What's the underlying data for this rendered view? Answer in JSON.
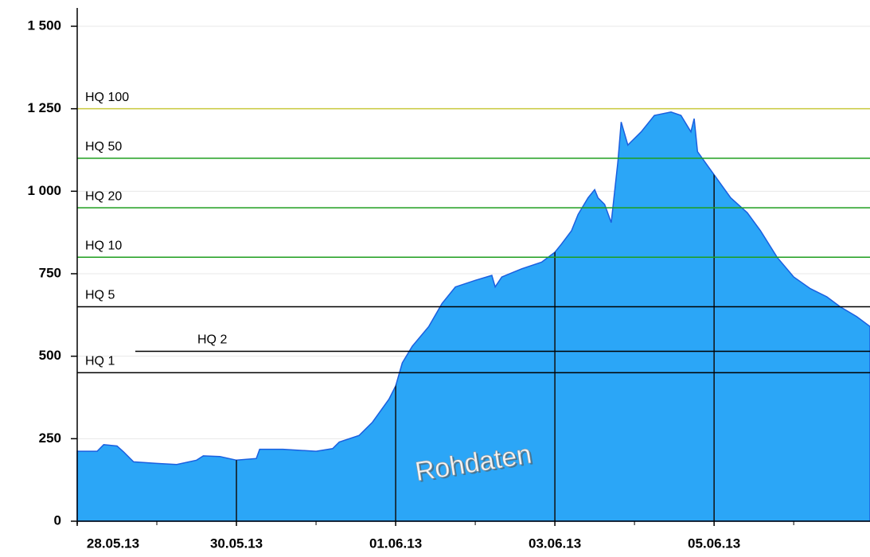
{
  "chart_data": {
    "type": "area",
    "annotation": "Rohdaten",
    "color": "#2ba6f7",
    "line_color": "#1a5fe0",
    "x": [
      "2013-05-28T00:00",
      "2013-05-28T06:00",
      "2013-05-28T08:00",
      "2013-05-28T12:00",
      "2013-05-28T14:00",
      "2013-05-28T17:00",
      "2013-05-29T00:00",
      "2013-05-29T06:00",
      "2013-05-29T12:00",
      "2013-05-29T14:00",
      "2013-05-29T19:00",
      "2013-05-30T00:00",
      "2013-05-30T06:00",
      "2013-05-30T07:00",
      "2013-05-30T14:00",
      "2013-05-31T00:00",
      "2013-05-31T05:00",
      "2013-05-31T07:00",
      "2013-05-31T13:00",
      "2013-05-31T17:00",
      "2013-05-31T22:00",
      "2013-06-01T00:00",
      "2013-06-01T02:00",
      "2013-06-01T05:00",
      "2013-06-01T10:00",
      "2013-06-01T14:00",
      "2013-06-01T18:00",
      "2013-06-02T00:00",
      "2013-06-02T05:00",
      "2013-06-02T06:00",
      "2013-06-02T08:00",
      "2013-06-02T14:00",
      "2013-06-02T20:00",
      "2013-06-03T00:00",
      "2013-06-03T02:00",
      "2013-06-03T05:00",
      "2013-06-03T07:00",
      "2013-06-03T10:00",
      "2013-06-03T12:00",
      "2013-06-03T13:00",
      "2013-06-03T15:00",
      "2013-06-03T17:00",
      "2013-06-03T19:00",
      "2013-06-03T20:00",
      "2013-06-03T22:00",
      "2013-06-03T23:00",
      "2013-06-04T02:00",
      "2013-06-04T06:00",
      "2013-06-04T11:00",
      "2013-06-04T14:00",
      "2013-06-04T17:00",
      "2013-06-04T18:00",
      "2013-06-04T19:00",
      "2013-06-05T00:00",
      "2013-06-05T05:00",
      "2013-06-05T10:00",
      "2013-06-05T14:00",
      "2013-06-05T19:00",
      "2013-06-06T00:00",
      "2013-06-06T05:00",
      "2013-06-06T10:00",
      "2013-06-06T14:00",
      "2013-06-06T19:00",
      "2013-06-06T23:00"
    ],
    "values": [
      212,
      212,
      232,
      228,
      210,
      180,
      175,
      172,
      185,
      198,
      196,
      185,
      190,
      218,
      218,
      212,
      220,
      240,
      260,
      300,
      370,
      410,
      480,
      530,
      590,
      660,
      710,
      730,
      745,
      710,
      740,
      765,
      785,
      815,
      840,
      880,
      930,
      980,
      1005,
      980,
      960,
      905,
      1090,
      1210,
      1140,
      1150,
      1180,
      1230,
      1240,
      1230,
      1180,
      1220,
      1120,
      1050,
      980,
      935,
      880,
      800,
      740,
      705,
      680,
      650,
      620,
      590
    ],
    "xlim": [
      "2013-05-28T00:00",
      "2013-06-06T23:00"
    ],
    "xticks": [
      {
        "value": "2013-05-28T00:00",
        "label": "28.05.13"
      },
      {
        "value": "2013-05-30T00:00",
        "label": "30.05.13"
      },
      {
        "value": "2013-06-01T00:00",
        "label": "01.06.13"
      },
      {
        "value": "2013-06-03T00:00",
        "label": "03.06.13"
      },
      {
        "value": "2013-06-05T00:00",
        "label": "05.06.13"
      }
    ],
    "xminorticks": [
      "2013-05-29T00:00",
      "2013-05-31T00:00",
      "2013-06-02T00:00",
      "2013-06-04T00:00",
      "2013-06-06T00:00"
    ],
    "ylim": [
      0,
      1500
    ],
    "yticks": [
      0,
      250,
      500,
      750,
      {
        "value": 1000,
        "label": "1 000"
      },
      {
        "value": 1250,
        "label": "1 250"
      },
      {
        "value": 1500,
        "label": "1 500"
      }
    ],
    "grid": true,
    "reference_lines": [
      {
        "label": "HQ 100",
        "value": 1250,
        "color": "#c8c83c"
      },
      {
        "label": "HQ 50",
        "value": 1100,
        "color": "#1e9e1e"
      },
      {
        "label": "HQ 20",
        "value": 950,
        "color": "#1e9e1e"
      },
      {
        "label": "HQ 10",
        "value": 800,
        "color": "#1e9e1e"
      },
      {
        "label": "HQ 5",
        "value": 650,
        "color": "#000000"
      },
      {
        "label": "HQ 2",
        "value": 515,
        "color": "#000000"
      },
      {
        "label": "HQ 1",
        "value": 450,
        "color": "#000000"
      }
    ]
  }
}
